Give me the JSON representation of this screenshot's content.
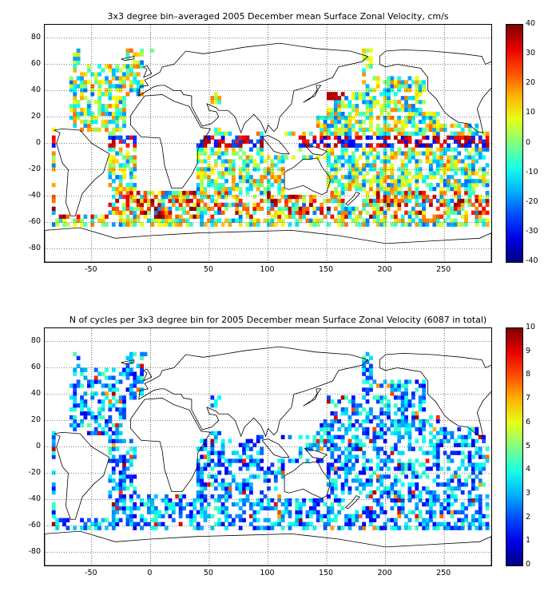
{
  "panels": [
    {
      "id": "velocity",
      "title": "3x3 degree bin–averaged 2005 December mean Surface Zonal Velocity, cm/s",
      "x_ticks": [
        "-50",
        "0",
        "50",
        "100",
        "150",
        "200",
        "250"
      ],
      "y_ticks": [
        "80",
        "60",
        "40",
        "20",
        "0",
        "-20",
        "-40",
        "-60",
        "-80"
      ],
      "colorbar_ticks": [
        "40",
        "30",
        "20",
        "10",
        "0",
        "-10",
        "-20",
        "-30",
        "-40"
      ],
      "xlim": [
        -90,
        290
      ],
      "ylim": [
        -90,
        90
      ],
      "clim": [
        -40,
        40
      ],
      "colormap": "jet",
      "grid": "dotted"
    },
    {
      "id": "counts",
      "title": "N of cycles per 3x3 degree bin for 2005 December mean Surface Zonal Velocity (6087 in total)",
      "x_ticks": [
        "-50",
        "0",
        "50",
        "100",
        "150",
        "200",
        "250"
      ],
      "y_ticks": [
        "80",
        "60",
        "40",
        "20",
        "0",
        "-20",
        "-40",
        "-60",
        "-80"
      ],
      "colorbar_ticks": [
        "10",
        "9",
        "8",
        "7",
        "6",
        "5",
        "4",
        "3",
        "2",
        "1",
        "0"
      ],
      "xlim": [
        -90,
        290
      ],
      "ylim": [
        -90,
        90
      ],
      "clim": [
        0,
        10
      ],
      "colormap": "jet",
      "grid": "dotted"
    }
  ]
}
